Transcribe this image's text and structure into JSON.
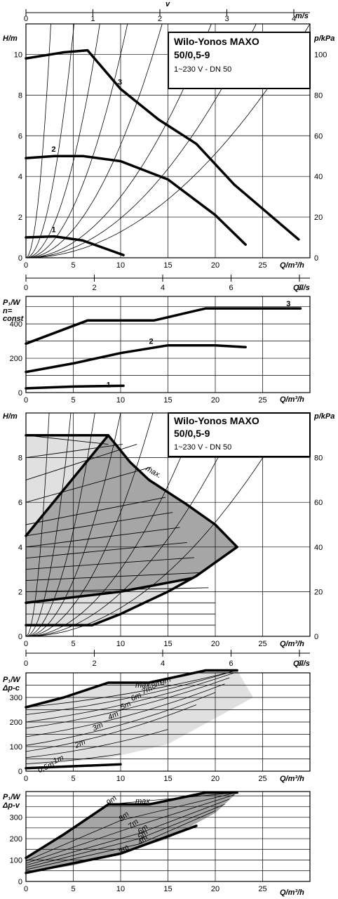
{
  "colors": {
    "ink": "#000000",
    "shade_dark": "#a6a6a6",
    "shade_light": "#e0e0e0",
    "background": "#ffffff"
  },
  "product": {
    "name": "Wilo-Yonos MAXO",
    "model": "50/0,5-9",
    "rating": "1~230 V - DN 50"
  },
  "axis_text": {
    "v": "v",
    "ms": "m/s",
    "H": "H/m",
    "pkpa": "p/kPa",
    "Qm3": "Q/m³/h",
    "Qls": "Q/l/s",
    "P1": "P₁/W",
    "nconst1": "n=",
    "nconst2": "const",
    "dpc": "Δp-c",
    "dpv": "Δp-v",
    "max": "max."
  },
  "chart_data": [
    {
      "type": "line",
      "id": "head-curves",
      "xlabel": "Q/m³/h",
      "ylabel": "H/m",
      "y2label": "p/kPa",
      "top_axis": {
        "label": "v",
        "unit": "m/s",
        "ticks": [
          "0",
          "1",
          "2",
          "3",
          "4"
        ]
      },
      "xlim": [
        0,
        30
      ],
      "ylim": [
        0,
        11.5
      ],
      "xticks": [
        "0",
        "5",
        "10",
        "15",
        "20",
        "25"
      ],
      "yticks": [
        "0",
        "2",
        "4",
        "6",
        "8",
        "10"
      ],
      "y2ticks": [
        "0",
        "20",
        "40",
        "60",
        "80",
        "100"
      ],
      "grid": true,
      "series": [
        {
          "name": "1",
          "x": [
            0,
            3,
            6,
            9,
            10.3
          ],
          "y": [
            1.0,
            1.05,
            0.85,
            0.35,
            0.13
          ]
        },
        {
          "name": "2",
          "x": [
            0,
            3,
            6,
            10,
            15,
            20,
            23.2
          ],
          "y": [
            4.9,
            5.0,
            5.0,
            4.75,
            3.85,
            2.1,
            0.65
          ]
        },
        {
          "name": "3",
          "x": [
            0,
            4,
            6.5,
            10,
            14,
            18,
            22,
            28.8
          ],
          "y": [
            9.8,
            10.1,
            10.2,
            8.3,
            6.8,
            5.6,
            3.6,
            0.9
          ]
        }
      ],
      "system_curves_hmax": [
        11.5,
        17.5,
        27,
        50,
        90,
        170,
        400,
        1500
      ]
    },
    {
      "type": "line",
      "id": "power-n-const",
      "xlabel": "Q/m³/h",
      "ylabel": "P₁/W",
      "note": "n= const",
      "top_axis": {
        "label": "Q/l/s",
        "ticks": [
          "0",
          "2",
          "4",
          "6",
          "8"
        ]
      },
      "xlim": [
        0,
        30
      ],
      "ylim": [
        0,
        560
      ],
      "xticks": [
        "0",
        "5",
        "10",
        "15",
        "20",
        "25"
      ],
      "yticks": [
        "0",
        "200",
        "400"
      ],
      "grid": true,
      "series": [
        {
          "name": "1",
          "x": [
            0,
            5,
            10.3
          ],
          "y": [
            25,
            35,
            40
          ]
        },
        {
          "name": "2",
          "x": [
            0,
            5,
            10,
            15,
            20,
            23.2
          ],
          "y": [
            120,
            170,
            230,
            275,
            275,
            265
          ]
        },
        {
          "name": "3",
          "x": [
            0,
            6.5,
            13.5,
            19,
            29
          ],
          "y": [
            285,
            420,
            420,
            490,
            490
          ]
        }
      ]
    },
    {
      "type": "area",
      "id": "control-range",
      "xlabel": "Q/m³/h",
      "ylabel": "H/m",
      "y2label": "p/kPa",
      "annotations": [
        "max."
      ],
      "xlim": [
        0,
        30
      ],
      "ylim": [
        0,
        10
      ],
      "xticks": [
        "0",
        "5",
        "10",
        "15",
        "20",
        "25"
      ],
      "yticks": [
        "0",
        "2",
        "4",
        "6",
        "8"
      ],
      "y2ticks": [
        "0",
        "20",
        "40",
        "60",
        "80"
      ],
      "grid": true,
      "max_curve": {
        "x": [
          0,
          8.7,
          11,
          13,
          17,
          20,
          22.3
        ],
        "y": [
          9,
          9,
          7.8,
          7,
          5.9,
          5.0,
          4.0
        ]
      },
      "min_curve": {
        "x": [
          0,
          7,
          10,
          13,
          15,
          18,
          22.3
        ],
        "y": [
          0.5,
          0.5,
          1.0,
          1.6,
          2.0,
          2.7,
          4.0
        ]
      },
      "dark_region": {
        "x": [
          0,
          8.7,
          11,
          13,
          17,
          20,
          22.3,
          17.5,
          10,
          0
        ],
        "y": [
          4.5,
          9,
          7.8,
          7,
          5.9,
          5.0,
          4.0,
          2.6,
          2.0,
          1.5
        ]
      },
      "light_region": {
        "x": [
          0,
          8.7,
          11,
          13,
          17,
          20,
          22.3,
          18,
          15,
          13,
          10,
          7,
          0
        ],
        "y": [
          9,
          9,
          7.8,
          7,
          5.9,
          5.0,
          4.0,
          2.7,
          2.0,
          1.6,
          1.0,
          0.5,
          0.5
        ]
      },
      "setpoint_lines_H": [
        0.5,
        1,
        1.5,
        2,
        2.5,
        3,
        3.5,
        4,
        4.5,
        5,
        6,
        7,
        8,
        9
      ],
      "system_curves_hmax": [
        11.5,
        17.5,
        27,
        50,
        90,
        170,
        400,
        1500
      ]
    },
    {
      "type": "line",
      "id": "power-dp-c",
      "xlabel": "Q/m³/h",
      "ylabel": "P₁/W",
      "note": "Δp-c",
      "top_axis": {
        "label": "Q/l/s",
        "ticks": [
          "0",
          "2",
          "4",
          "6",
          "8"
        ]
      },
      "xlim": [
        0,
        30
      ],
      "ylim": [
        0,
        400
      ],
      "xticks": [
        "0",
        "5",
        "10",
        "15",
        "20",
        "25"
      ],
      "yticks": [
        "0",
        "100",
        "200",
        "300"
      ],
      "grid": true,
      "series": [
        {
          "name": "0,5m",
          "x": [
            0,
            7
          ],
          "y": [
            12,
            25
          ]
        },
        {
          "name": "1m",
          "x": [
            0,
            10
          ],
          "y": [
            30,
            70
          ]
        },
        {
          "name": "2m",
          "x": [
            0,
            15
          ],
          "y": [
            55,
            170
          ]
        },
        {
          "name": "3m",
          "x": [
            0,
            18
          ],
          "y": [
            80,
            270
          ]
        },
        {
          "name": "4m",
          "x": [
            0,
            20
          ],
          "y": [
            105,
            320
          ]
        },
        {
          "name": "5m",
          "x": [
            0,
            21
          ],
          "y": [
            140,
            355
          ]
        },
        {
          "name": "6m",
          "x": [
            0,
            21.5
          ],
          "y": [
            175,
            380
          ]
        },
        {
          "name": "7m",
          "x": [
            0,
            22
          ],
          "y": [
            200,
            400
          ]
        },
        {
          "name": "8m",
          "x": [
            0,
            22.2
          ],
          "y": [
            230,
            410
          ]
        },
        {
          "name": "9m",
          "x": [
            0,
            22.3
          ],
          "y": [
            260,
            410
          ]
        }
      ],
      "max_curve": {
        "x": [
          0,
          4,
          8.7,
          13,
          19,
          22.3
        ],
        "y": [
          260,
          300,
          360,
          360,
          410,
          410
        ]
      }
    },
    {
      "type": "line",
      "id": "power-dp-v",
      "xlabel": "Q/m³/h",
      "ylabel": "P₁/W",
      "note": "Δp-v",
      "xlim": [
        0,
        30
      ],
      "ylim": [
        0,
        420
      ],
      "xticks": [
        "0",
        "5",
        "10",
        "15",
        "20",
        "25"
      ],
      "yticks": [
        "0",
        "100",
        "200",
        "300"
      ],
      "grid": true,
      "series": [
        {
          "name": "3m",
          "x": [
            0,
            10,
            18
          ],
          "y": [
            40,
            130,
            260
          ]
        },
        {
          "name": "4m",
          "x": [
            0,
            12,
            20
          ],
          "y": [
            55,
            175,
            330
          ]
        },
        {
          "name": "5m",
          "x": [
            0,
            12,
            21
          ],
          "y": [
            65,
            200,
            360
          ]
        },
        {
          "name": "6m",
          "x": [
            0,
            12,
            21.5
          ],
          "y": [
            75,
            225,
            385
          ]
        },
        {
          "name": "7m",
          "x": [
            0,
            11,
            22
          ],
          "y": [
            85,
            250,
            405
          ]
        },
        {
          "name": "8m",
          "x": [
            0,
            10,
            22.2
          ],
          "y": [
            95,
            285,
            415
          ]
        },
        {
          "name": "9m",
          "x": [
            0,
            8.7,
            22.3
          ],
          "y": [
            110,
            360,
            415
          ]
        }
      ],
      "max_curve": {
        "x": [
          0,
          4,
          8.7,
          13,
          19,
          22.3
        ],
        "y": [
          110,
          220,
          360,
          360,
          415,
          415
        ]
      }
    }
  ]
}
